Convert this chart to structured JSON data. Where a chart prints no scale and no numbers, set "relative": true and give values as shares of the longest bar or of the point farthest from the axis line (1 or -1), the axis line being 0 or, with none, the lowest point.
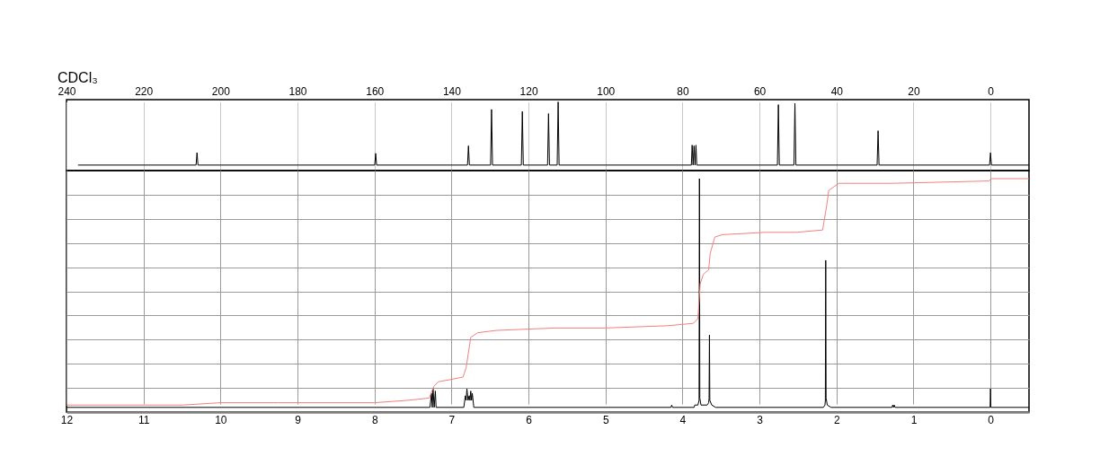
{
  "chart_data": [
    {
      "type": "line",
      "title": "CDCl₃",
      "relative": true,
      "color": "#000000",
      "x": [
        237,
        206.35,
        206.1,
        205.85,
        159.95,
        159.7,
        159.45,
        135.85,
        135.6,
        135.35,
        129.85,
        129.6,
        129.35,
        121.85,
        121.6,
        121.35,
        115.05,
        114.8,
        114.55,
        112.55,
        112.3,
        112.05,
        77.7,
        77.5,
        77.25,
        77.0,
        76.75,
        76.5,
        76.3,
        55.35,
        55.1,
        54.85,
        51.05,
        50.8,
        50.55,
        29.45,
        29.2,
        28.95,
        0.25,
        0,
        -0.25,
        -10
      ],
      "values": [
        0.08,
        0.08,
        0.26,
        0.08,
        0.08,
        0.25,
        0.08,
        0.08,
        0.36,
        0.08,
        0.08,
        0.89,
        0.08,
        0.08,
        0.86,
        0.08,
        0.08,
        0.83,
        0.08,
        0.08,
        1.0,
        0.08,
        0.08,
        0.37,
        0.08,
        0.36,
        0.08,
        0.37,
        0.08,
        0.08,
        0.96,
        0.08,
        0.08,
        0.98,
        0.08,
        0.08,
        0.58,
        0.08,
        0.08,
        0.26,
        0.08,
        0.08
      ],
      "xlim": [
        240,
        -10
      ],
      "xticks": [
        240,
        220,
        200,
        180,
        160,
        140,
        120,
        100,
        80,
        60,
        40,
        20,
        0
      ],
      "grid": "x"
    },
    {
      "type": "line",
      "relative": true,
      "series": [
        {
          "color": "#000000",
          "x": [
            12,
            7.28,
            7.26,
            7.25,
            7.24,
            7.225,
            7.21,
            7.2,
            6.84,
            6.82,
            6.81,
            6.8,
            6.785,
            6.77,
            6.76,
            6.75,
            6.74,
            6.73,
            6.71,
            4.15,
            4.14,
            4.13,
            3.85,
            3.84,
            3.8,
            3.785,
            3.78,
            3.775,
            3.76,
            3.68,
            3.66,
            3.655,
            3.65,
            3.645,
            3.62,
            3.57,
            2.17,
            2.15,
            2.145,
            2.14,
            2.135,
            2.12,
            2.07,
            1.28,
            1.27,
            1.26,
            1.25,
            1.24,
            0.005,
            0.0,
            -0.005,
            -0.5
          ],
          "values": [
            0.02,
            0.02,
            0.08,
            0.02,
            0.1,
            0.02,
            0.09,
            0.02,
            0.02,
            0.07,
            0.05,
            0.1,
            0.05,
            0.07,
            0.05,
            0.09,
            0.05,
            0.08,
            0.02,
            0.02,
            0.03,
            0.02,
            0.02,
            0.03,
            0.03,
            0.05,
            1.0,
            0.06,
            0.03,
            0.03,
            0.04,
            0.06,
            0.33,
            0.05,
            0.03,
            0.02,
            0.02,
            0.03,
            0.05,
            0.65,
            0.06,
            0.03,
            0.02,
            0.02,
            0.03,
            0.02,
            0.03,
            0.02,
            0.02,
            0.1,
            0.02,
            0.02
          ]
        },
        {
          "color": "#f08080",
          "x": [
            12,
            10.49,
            10.0,
            9.25,
            8.0,
            7.58,
            7.29,
            7.23,
            7.17,
            7.0,
            6.85,
            6.81,
            6.75,
            6.66,
            6.41,
            5.66,
            5.02,
            4.19,
            3.86,
            3.8,
            3.77,
            3.73,
            3.66,
            3.64,
            3.58,
            3.48,
            2.93,
            2.52,
            2.18,
            2.13,
            2.1,
            1.97,
            1.26,
            0.02,
            -0.01,
            -0.5
          ],
          "values": [
            0.03,
            0.03,
            0.04,
            0.04,
            0.04,
            0.05,
            0.06,
            0.11,
            0.13,
            0.14,
            0.15,
            0.19,
            0.32,
            0.34,
            0.35,
            0.36,
            0.36,
            0.37,
            0.38,
            0.4,
            0.55,
            0.59,
            0.61,
            0.68,
            0.75,
            0.76,
            0.77,
            0.77,
            0.78,
            0.88,
            0.95,
            0.98,
            0.98,
            0.99,
            1.0,
            1.0
          ]
        }
      ],
      "xlim": [
        12,
        -0.5
      ],
      "xticks": [
        12,
        11,
        10,
        9,
        8,
        7,
        6,
        5,
        4,
        3,
        2,
        1,
        0
      ],
      "grid": true
    }
  ]
}
